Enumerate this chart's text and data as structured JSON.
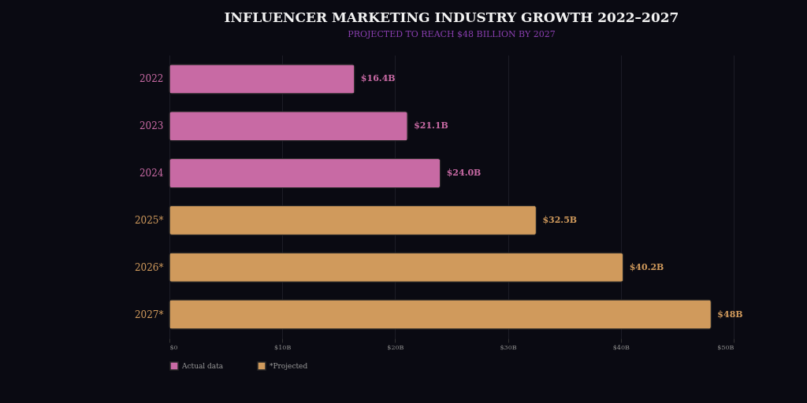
{
  "chart_data": {
    "type": "bar",
    "orientation": "horizontal",
    "stacked": true,
    "title": "INFLUENCER MARKETING INDUSTRY GROWTH 2022–2027",
    "subtitle": "PROJECTED TO REACH $48 BILLION BY 2027",
    "categories": [
      "2022",
      "2023",
      "2024",
      "2025*",
      "2026*",
      "2027*"
    ],
    "series": [
      {
        "name": "Actual data",
        "color": "#c86aa4",
        "values": [
          16.4,
          21.1,
          24.0,
          null,
          null,
          null
        ],
        "value_labels": [
          "$16.4B",
          "$21.1B",
          "$24.0B",
          null,
          null,
          null
        ]
      },
      {
        "name": "*Projected",
        "color": "#d09a5c",
        "values": [
          null,
          null,
          null,
          32.5,
          40.2,
          48
        ],
        "value_labels": [
          null,
          null,
          null,
          "$32.5B",
          "$40.2B",
          "$48B"
        ]
      }
    ],
    "xlim": [
      0,
      50
    ],
    "xticks": [
      {
        "value": 0,
        "label": "$0"
      },
      {
        "value": 10,
        "label": "$10B"
      },
      {
        "value": 20,
        "label": "$20B"
      },
      {
        "value": 30,
        "label": "$30B"
      },
      {
        "value": 40,
        "label": "$40B"
      },
      {
        "value": 50,
        "label": "$50B"
      }
    ],
    "grid": "x",
    "legend": "bottom"
  }
}
